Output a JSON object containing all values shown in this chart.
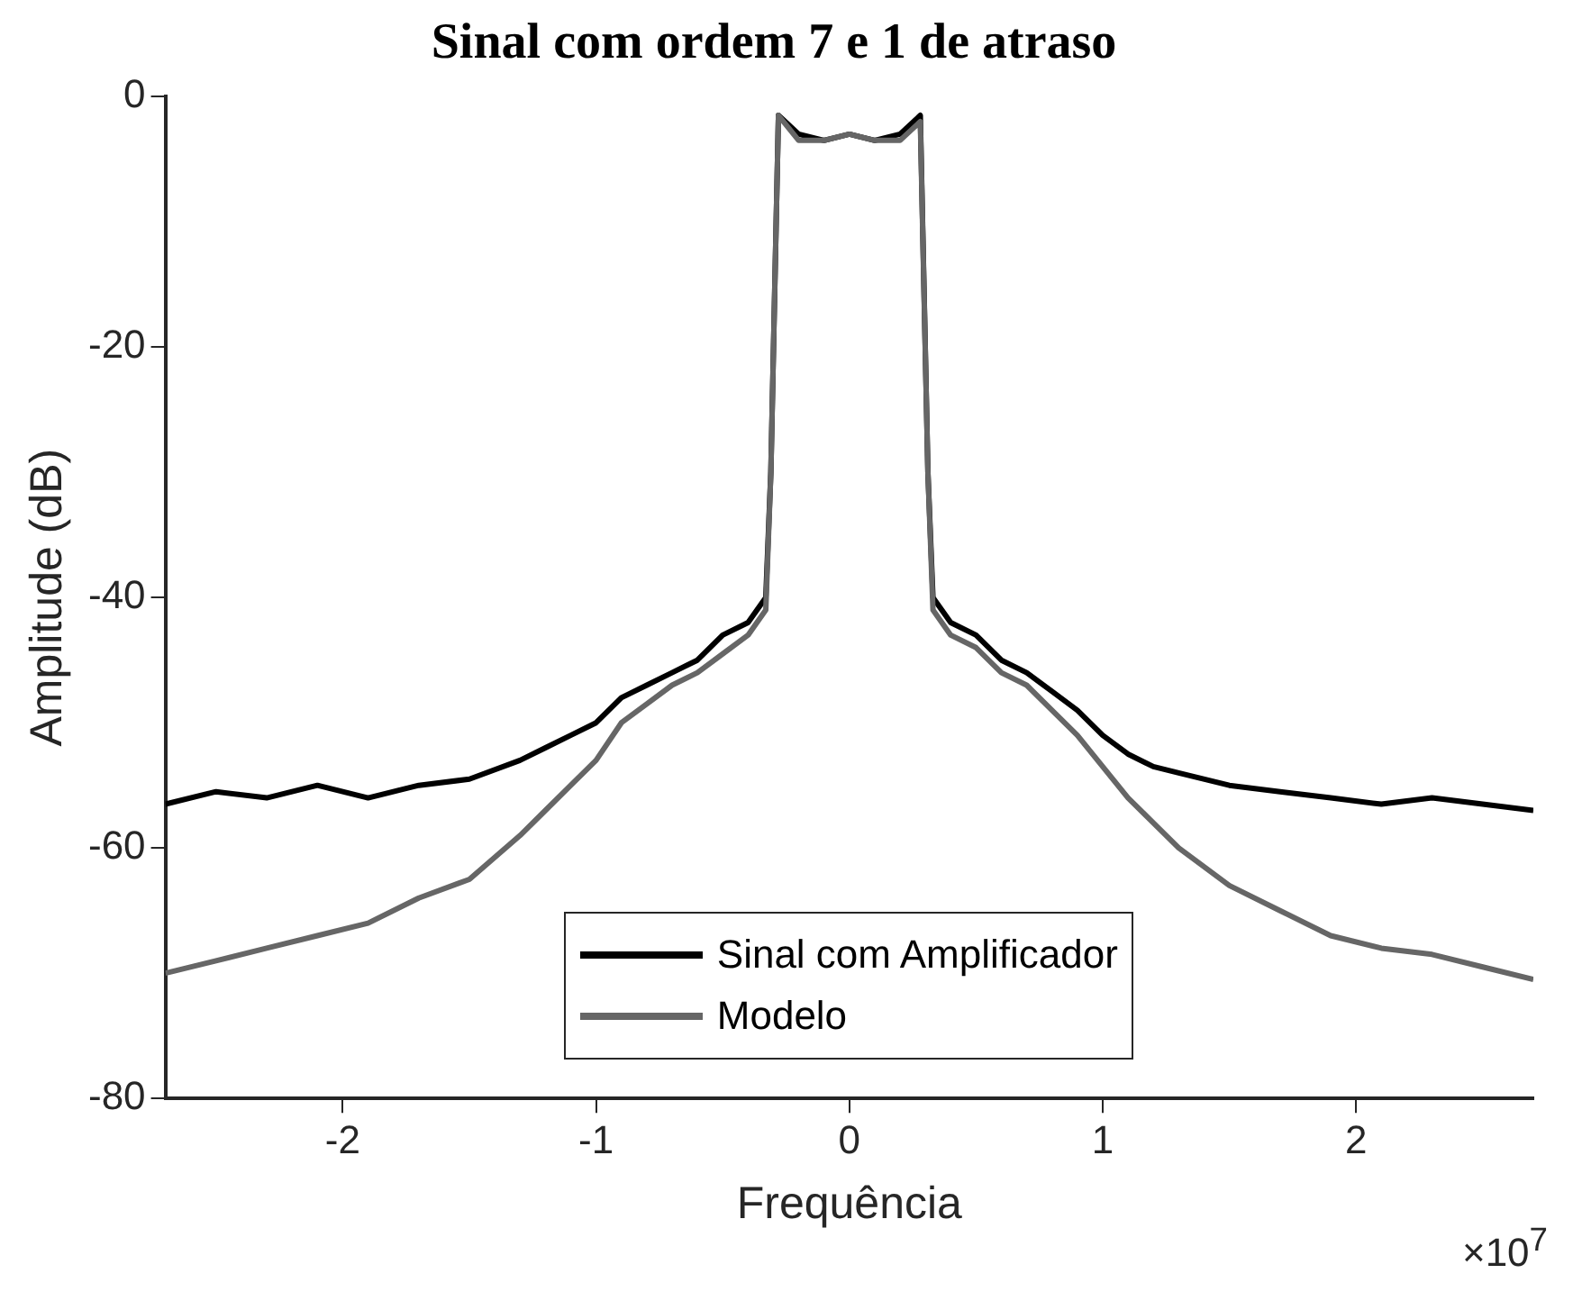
{
  "chart_data": {
    "type": "line",
    "title": "Sinal com ordem 7 e 1 de atraso",
    "xlabel": "Frequência",
    "ylabel": "Amplitude (dB)",
    "annotations": [
      "×10$^{7}$"
    ],
    "x": [
      -2.7,
      -2.5,
      -2.3,
      -2.1,
      -1.9,
      -1.7,
      -1.5,
      -1.3,
      -1.2,
      -1.1,
      -1.0,
      -0.9,
      -0.8,
      -0.7,
      -0.6,
      -0.5,
      -0.4,
      -0.33,
      -0.31,
      -0.28,
      -0.2,
      -0.1,
      0,
      0.1,
      0.2,
      0.28,
      0.31,
      0.33,
      0.4,
      0.5,
      0.6,
      0.7,
      0.8,
      0.9,
      1.0,
      1.1,
      1.2,
      1.3,
      1.5,
      1.7,
      1.9,
      2.1,
      2.3,
      2.5,
      2.7
    ],
    "series": [
      {
        "name": "Sinal com Amplificador",
        "color": "#000000",
        "values": [
          -56.5,
          -55.5,
          -56,
          -55,
          -56,
          -55,
          -54.5,
          -53,
          -52,
          -51,
          -50,
          -48,
          -47,
          -46,
          -45,
          -43,
          -42,
          -40,
          -30,
          -1.5,
          -3,
          -3.5,
          -3,
          -3.5,
          -3,
          -1.5,
          -30,
          -40,
          -42,
          -43,
          -45,
          -46,
          -47.5,
          -49,
          -51,
          -52.5,
          -53.5,
          -54,
          -55,
          -55.5,
          -56,
          -56.5,
          -56,
          -56.5,
          -57
        ]
      },
      {
        "name": "Modelo",
        "color": "#666666",
        "values": [
          -70,
          -69,
          -68,
          -67,
          -66,
          -64,
          -62.5,
          -59,
          -57,
          -55,
          -53,
          -50,
          -48.5,
          -47,
          -46,
          -44.5,
          -43,
          -41,
          -30,
          -1.5,
          -3.5,
          -3.5,
          -3,
          -3.5,
          -3.5,
          -2,
          -30,
          -41,
          -43,
          -44,
          -46,
          -47,
          -49,
          -51,
          -53.5,
          -56,
          -58,
          -60,
          -63,
          -65,
          -67,
          -68,
          -68.5,
          -69.5,
          -70.5
        ]
      }
    ],
    "xlim": [
      -2.7,
      2.7
    ],
    "xticks": [
      -2,
      -1,
      0,
      1,
      2
    ],
    "ylim": [
      -80,
      0
    ],
    "yticks": [
      -80,
      -60,
      -40,
      -20,
      0
    ],
    "grid": false,
    "legend": "bottom",
    "marker": "none",
    "line_style": "solid"
  }
}
